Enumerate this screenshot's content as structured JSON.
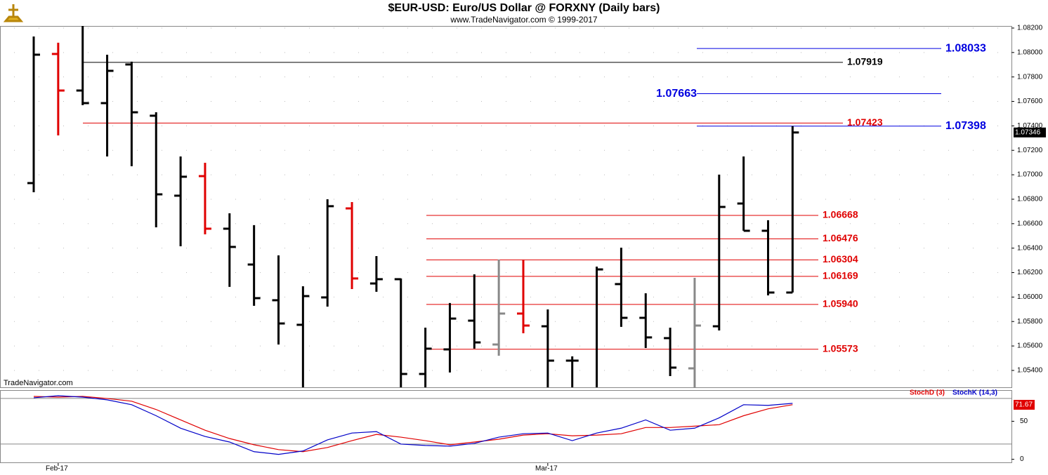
{
  "chart_data": {
    "type": "ohlc",
    "title": "$EUR-USD:  Euro/US Dollar @ FORXNY  (Daily bars)",
    "subtitle": "www.TradeNavigator.com © 1999-2017",
    "watermark": "TradeNavigator.com",
    "categories": [
      null,
      "Feb-17",
      null,
      null,
      null,
      null,
      null,
      null,
      null,
      null,
      null,
      null,
      null,
      null,
      null,
      null,
      null,
      null,
      null,
      null,
      null,
      "Mar-17",
      null,
      null,
      null,
      null,
      null,
      null,
      null,
      null,
      null,
      null
    ],
    "open": [
      1.06932,
      1.07988,
      1.07689,
      1.07586,
      1.07902,
      1.07483,
      1.06829,
      1.06989,
      1.06559,
      1.06266,
      1.05974,
      1.05773,
      1.05997,
      1.06725,
      1.06111,
      1.06146,
      1.05371,
      1.05572,
      1.05807,
      1.05612,
      1.05865,
      1.05761,
      1.0548,
      1.052,
      1.06106,
      1.0583,
      1.05664,
      1.05417,
      1.05761,
      1.06765,
      1.06542,
      1.06037
    ],
    "high": [
      1.08131,
      1.0808,
      1.08217,
      1.07982,
      1.07925,
      1.07511,
      1.0715,
      1.07098,
      1.06685,
      1.06588,
      1.06341,
      1.06088,
      1.068,
      1.06777,
      1.06335,
      1.06152,
      1.0575,
      1.05951,
      1.06186,
      1.06306,
      1.06306,
      1.05899,
      1.05515,
      1.06249,
      1.06404,
      1.06031,
      1.0575,
      1.06157,
      1.07001,
      1.0715,
      1.06628,
      1.07398
    ],
    "low": [
      1.06857,
      1.07322,
      1.07569,
      1.0715,
      1.0707,
      1.0657,
      1.06415,
      1.06513,
      1.06083,
      1.05928,
      1.05612,
      1.052,
      1.05922,
      1.06065,
      1.06043,
      1.052,
      1.052,
      1.05383,
      1.05578,
      1.0552,
      1.05704,
      1.052,
      1.052,
      1.052,
      1.05756,
      1.05583,
      1.05354,
      1.052,
      1.05727,
      1.06542,
      1.06014,
      1.06037
    ],
    "close": [
      1.07982,
      1.07689,
      1.07586,
      1.0785,
      1.07511,
      1.0684,
      1.06984,
      1.06559,
      1.0641,
      1.05991,
      1.05784,
      1.06008,
      1.06743,
      1.06152,
      1.06146,
      1.05371,
      1.05578,
      1.05824,
      1.05629,
      1.05865,
      1.05767,
      1.0548,
      1.0548,
      1.06226,
      1.0583,
      1.0567,
      1.05423,
      1.05767,
      1.06737,
      1.06542,
      1.06037,
      1.07346
    ],
    "colors": [
      "#000",
      "#e00000",
      "#000",
      "#000",
      "#000",
      "#000",
      "#000",
      "#e00000",
      "#000",
      "#000",
      "#000",
      "#000",
      "#000",
      "#e00000",
      "#000",
      "#000",
      "#000",
      "#000",
      "#000",
      "#888",
      "#e00000",
      "#000",
      "#000",
      "#000",
      "#000",
      "#000",
      "#000",
      "#888",
      "#000",
      "#000",
      "#000",
      "#000"
    ],
    "ylim": [
      1.05262,
      1.08217
    ],
    "yticks": [
      {
        "value": 1.082,
        "label": "1.08200"
      },
      {
        "value": 1.08,
        "label": "1.08000"
      },
      {
        "value": 1.078,
        "label": "1.07800"
      },
      {
        "value": 1.076,
        "label": "1.07600"
      },
      {
        "value": 1.074,
        "label": "1.07400"
      },
      {
        "value": 1.072,
        "label": "1.07200"
      },
      {
        "value": 1.07,
        "label": "1.07000"
      },
      {
        "value": 1.068,
        "label": "1.06800"
      },
      {
        "value": 1.066,
        "label": "1.06600"
      },
      {
        "value": 1.064,
        "label": "1.06400"
      },
      {
        "value": 1.062,
        "label": "1.06200"
      },
      {
        "value": 1.06,
        "label": "1.06000"
      },
      {
        "value": 1.058,
        "label": "1.05800"
      },
      {
        "value": 1.056,
        "label": "1.05600"
      },
      {
        "value": 1.054,
        "label": "1.05400"
      }
    ],
    "current_price": 1.07346,
    "levels": [
      {
        "value": 1.08033,
        "label": "1.08033",
        "color": "#0000e0"
      },
      {
        "value": 1.07919,
        "label": "1.07919",
        "color": "#000"
      },
      {
        "value": 1.07663,
        "label": "1.07663",
        "color": "#0000e0"
      },
      {
        "value": 1.07423,
        "label": "1.07423",
        "color": "#e00000"
      },
      {
        "value": 1.07398,
        "label": "1.07398",
        "color": "#0000e0"
      },
      {
        "value": 1.06668,
        "label": "1.06668",
        "color": "#e00000"
      },
      {
        "value": 1.06476,
        "label": "1.06476",
        "color": "#e00000"
      },
      {
        "value": 1.06304,
        "label": "1.06304",
        "color": "#e00000"
      },
      {
        "value": 1.06169,
        "label": "1.06169",
        "color": "#e00000"
      },
      {
        "value": 1.0594,
        "label": "1.05940",
        "color": "#e00000"
      },
      {
        "value": 1.05573,
        "label": "1.05573",
        "color": "#e00000"
      }
    ],
    "stochastic": {
      "ylim": [
        -5,
        91
      ],
      "yticks": [
        50,
        0
      ],
      "ref_lines": [
        80,
        20
      ],
      "current_value": 71.67,
      "series": [
        {
          "name": "StochD (3)",
          "color": "#e00000",
          "values": [
            82.7,
            81.8,
            82.7,
            80.0,
            76.4,
            65.5,
            51.8,
            38.2,
            27.3,
            19.1,
            12.7,
            10.0,
            15.5,
            24.5,
            32.7,
            29.1,
            24.5,
            19.1,
            22.7,
            26.4,
            31.8,
            33.6,
            30.9,
            31.8,
            33.6,
            41.8,
            41.8,
            43.6,
            45.5,
            57.3,
            66.4,
            71.8
          ]
        },
        {
          "name": "StochK (14,3)",
          "color": "#0000c8",
          "values": [
            80.9,
            83.6,
            81.8,
            78.2,
            71.8,
            57.3,
            40.9,
            30.0,
            22.7,
            10.0,
            6.4,
            10.9,
            25.5,
            34.5,
            36.4,
            20.0,
            18.2,
            17.3,
            20.9,
            29.1,
            33.6,
            34.5,
            24.5,
            34.5,
            40.9,
            51.8,
            38.2,
            40.9,
            54.5,
            71.8,
            70.9,
            73.6
          ]
        }
      ]
    }
  }
}
